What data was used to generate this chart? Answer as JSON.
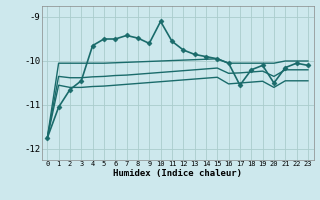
{
  "xlabel": "Humidex (Indice chaleur)",
  "bg_color": "#cde8ed",
  "grid_color": "#aacccc",
  "line_color": "#1a6b6b",
  "xlim": [
    -0.5,
    23.5
  ],
  "ylim": [
    -12.25,
    -8.75
  ],
  "yticks": [
    -12,
    -11,
    -10,
    -9
  ],
  "xticks": [
    0,
    1,
    2,
    3,
    4,
    5,
    6,
    7,
    8,
    9,
    10,
    11,
    12,
    13,
    14,
    15,
    16,
    17,
    18,
    19,
    20,
    21,
    22,
    23
  ],
  "series": [
    {
      "x": [
        0,
        1,
        2,
        3,
        4,
        5,
        6,
        7,
        8,
        9,
        10,
        11,
        12,
        13,
        14,
        15,
        16,
        17,
        18,
        19,
        20,
        21,
        22,
        23
      ],
      "y": [
        -11.75,
        -11.05,
        -10.65,
        -10.45,
        -9.65,
        -9.5,
        -9.5,
        -9.42,
        -9.48,
        -9.6,
        -9.1,
        -9.55,
        -9.75,
        -9.85,
        -9.9,
        -9.95,
        -10.05,
        -10.55,
        -10.2,
        -10.1,
        -10.5,
        -10.15,
        -10.05,
        -10.1
      ],
      "marker": "D",
      "markersize": 2.5,
      "linewidth": 1.2,
      "zorder": 4
    },
    {
      "x": [
        0,
        1,
        2,
        3,
        4,
        5,
        6,
        7,
        8,
        9,
        10,
        11,
        12,
        13,
        14,
        15,
        16,
        17,
        18,
        19,
        20,
        21,
        22,
        23
      ],
      "y": [
        -11.75,
        -10.05,
        -10.05,
        -10.05,
        -10.05,
        -10.05,
        -10.04,
        -10.03,
        -10.02,
        -10.01,
        -10.0,
        -9.99,
        -9.98,
        -9.97,
        -9.96,
        -9.95,
        -10.05,
        -10.05,
        -10.05,
        -10.05,
        -10.05,
        -10.0,
        -10.0,
        -10.0
      ],
      "marker": null,
      "linewidth": 1.0,
      "zorder": 2
    },
    {
      "x": [
        0,
        1,
        2,
        3,
        4,
        5,
        6,
        7,
        8,
        9,
        10,
        11,
        12,
        13,
        14,
        15,
        16,
        17,
        18,
        19,
        20,
        21,
        22,
        23
      ],
      "y": [
        -11.75,
        -10.35,
        -10.38,
        -10.38,
        -10.36,
        -10.35,
        -10.33,
        -10.32,
        -10.3,
        -10.28,
        -10.26,
        -10.24,
        -10.22,
        -10.2,
        -10.18,
        -10.16,
        -10.28,
        -10.27,
        -10.25,
        -10.23,
        -10.35,
        -10.2,
        -10.2,
        -10.2
      ],
      "marker": null,
      "linewidth": 1.0,
      "zorder": 2
    },
    {
      "x": [
        0,
        1,
        2,
        3,
        4,
        5,
        6,
        7,
        8,
        9,
        10,
        11,
        12,
        13,
        14,
        15,
        16,
        17,
        18,
        19,
        20,
        21,
        22,
        23
      ],
      "y": [
        -11.75,
        -10.55,
        -10.6,
        -10.6,
        -10.58,
        -10.57,
        -10.55,
        -10.53,
        -10.51,
        -10.49,
        -10.47,
        -10.45,
        -10.43,
        -10.41,
        -10.39,
        -10.37,
        -10.52,
        -10.5,
        -10.48,
        -10.46,
        -10.6,
        -10.45,
        -10.45,
        -10.45
      ],
      "marker": null,
      "linewidth": 1.0,
      "zorder": 2
    }
  ]
}
